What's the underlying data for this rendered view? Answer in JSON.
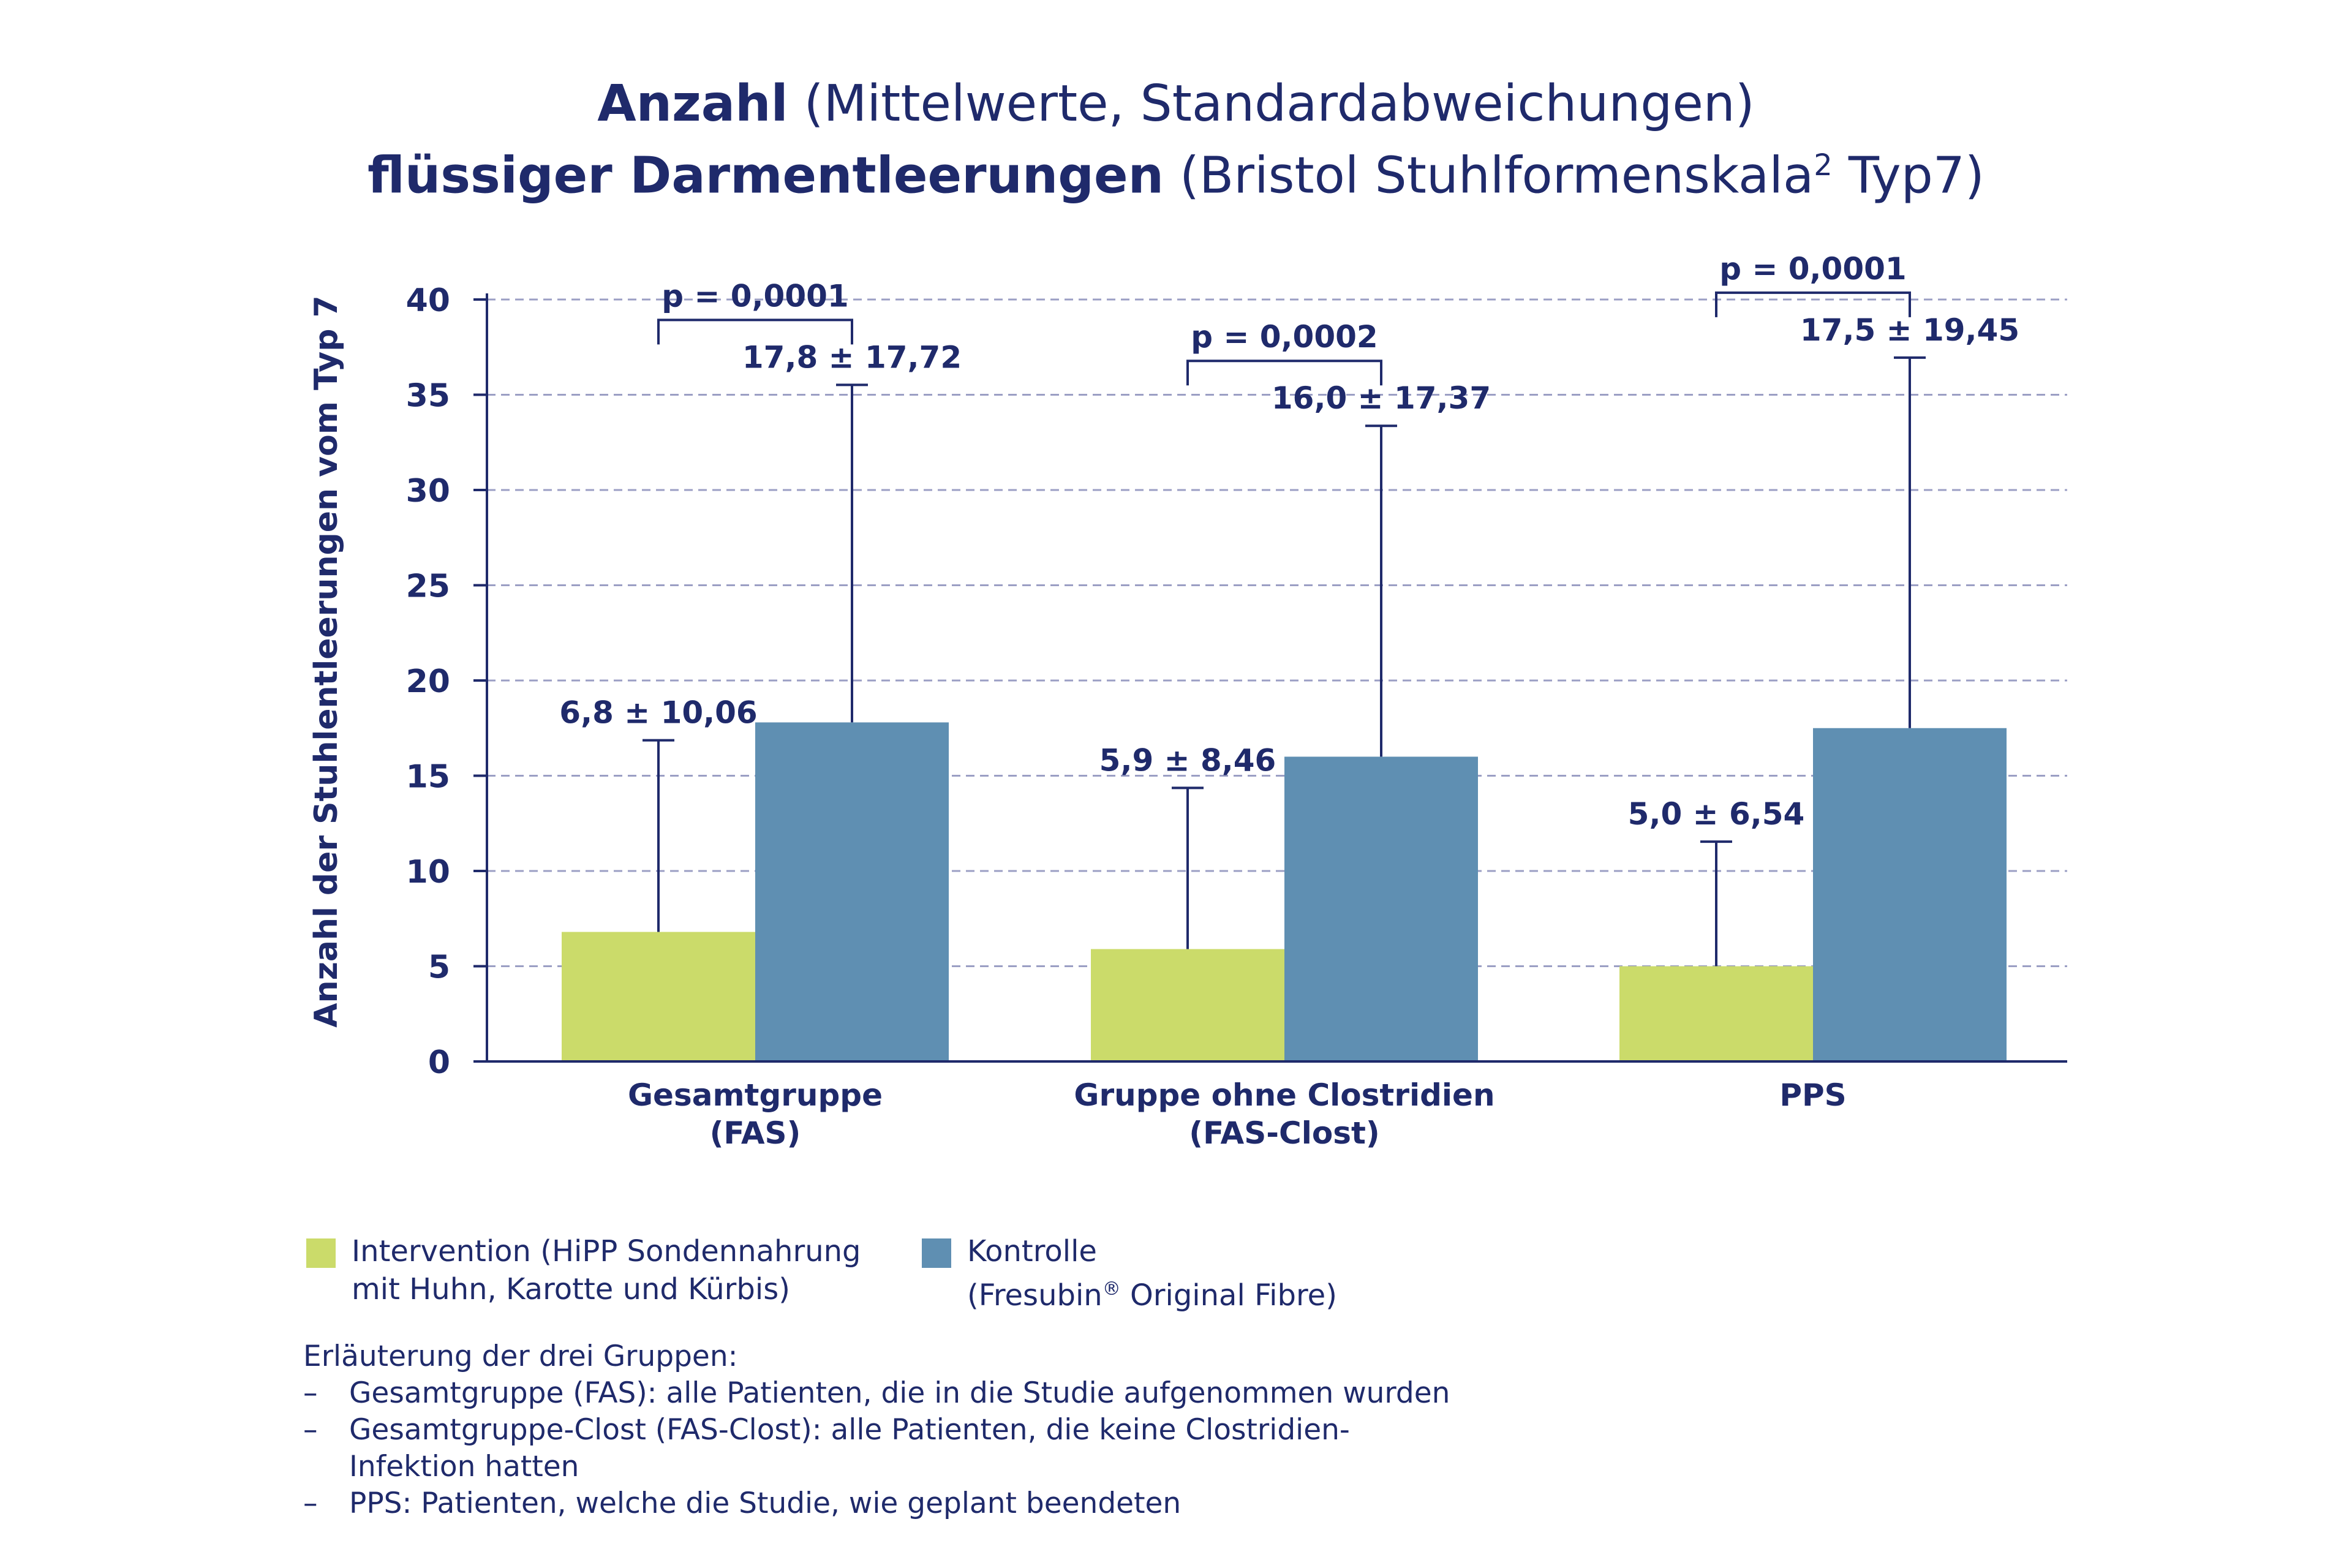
{
  "chart_data": {
    "type": "bar",
    "title_parts": [
      {
        "bold": "Anzahl",
        "normal": " (Mittelwerte, Standardabweichungen)"
      },
      {
        "bold": "flüssiger Darmentleerungen",
        "normal": " (Bristol Stuhlformenskala",
        "sup": "2",
        "after": " Typ7)"
      }
    ],
    "ylabel": "Anzahl der Stuhlentleerungen vom Typ 7",
    "ylim": [
      0,
      40
    ],
    "yticks": [
      0,
      5,
      10,
      15,
      20,
      25,
      30,
      35,
      40
    ],
    "grid": "dashed horizontal",
    "categories": [
      [
        "Gesamtgruppe",
        "(FAS)"
      ],
      [
        "Gruppe ohne Clostridien",
        "(FAS-Clost)"
      ],
      [
        "PPS"
      ]
    ],
    "series": [
      {
        "name": "Intervention (HiPP Sondennahrung mit Huhn, Karotte und Kürbis)",
        "color": "#cbdb6a",
        "values": [
          6.8,
          5.9,
          5.0
        ],
        "sd": [
          10.06,
          8.46,
          6.54
        ],
        "labels": [
          "6,8 ± 10,06",
          "5,9 ± 8,46",
          "5,0 ± 6,54"
        ]
      },
      {
        "name": "Kontrolle (Fresubin® Original Fibre)",
        "color": "#5f8fb2",
        "values": [
          17.8,
          16.0,
          17.5
        ],
        "sd": [
          17.72,
          17.37,
          19.45
        ],
        "labels": [
          "17,8 ± 17,72",
          "16,0 ± 17,37",
          "17,5 ± 19,45"
        ]
      }
    ],
    "p_values": [
      "p = 0,0001",
      "p = 0,0002",
      "p = 0,0001"
    ]
  },
  "legend": {
    "intervention": {
      "line1": "Intervention (HiPP Sondennahrung",
      "line2": "mit Huhn, Karotte und Kürbis)"
    },
    "kontrolle": {
      "line1": "Kontrolle",
      "line2_pre": "(Fresubin",
      "line2_sup": "®",
      "line2_post": " Original Fibre)"
    }
  },
  "notes": {
    "heading": "Erläuterung der drei Gruppen:",
    "items": [
      {
        "text": "Gesamtgruppe (FAS): alle Patienten, die in die Studie aufgenommen wurden"
      },
      {
        "text": "Gesamtgruppe-Clost (FAS-Clost): alle Patienten, die keine Clostridien-",
        "cont": "Infektion hatten"
      },
      {
        "text": "PPS: Patienten, welche die Studie, wie geplant beendeten"
      }
    ],
    "dash": "–"
  }
}
